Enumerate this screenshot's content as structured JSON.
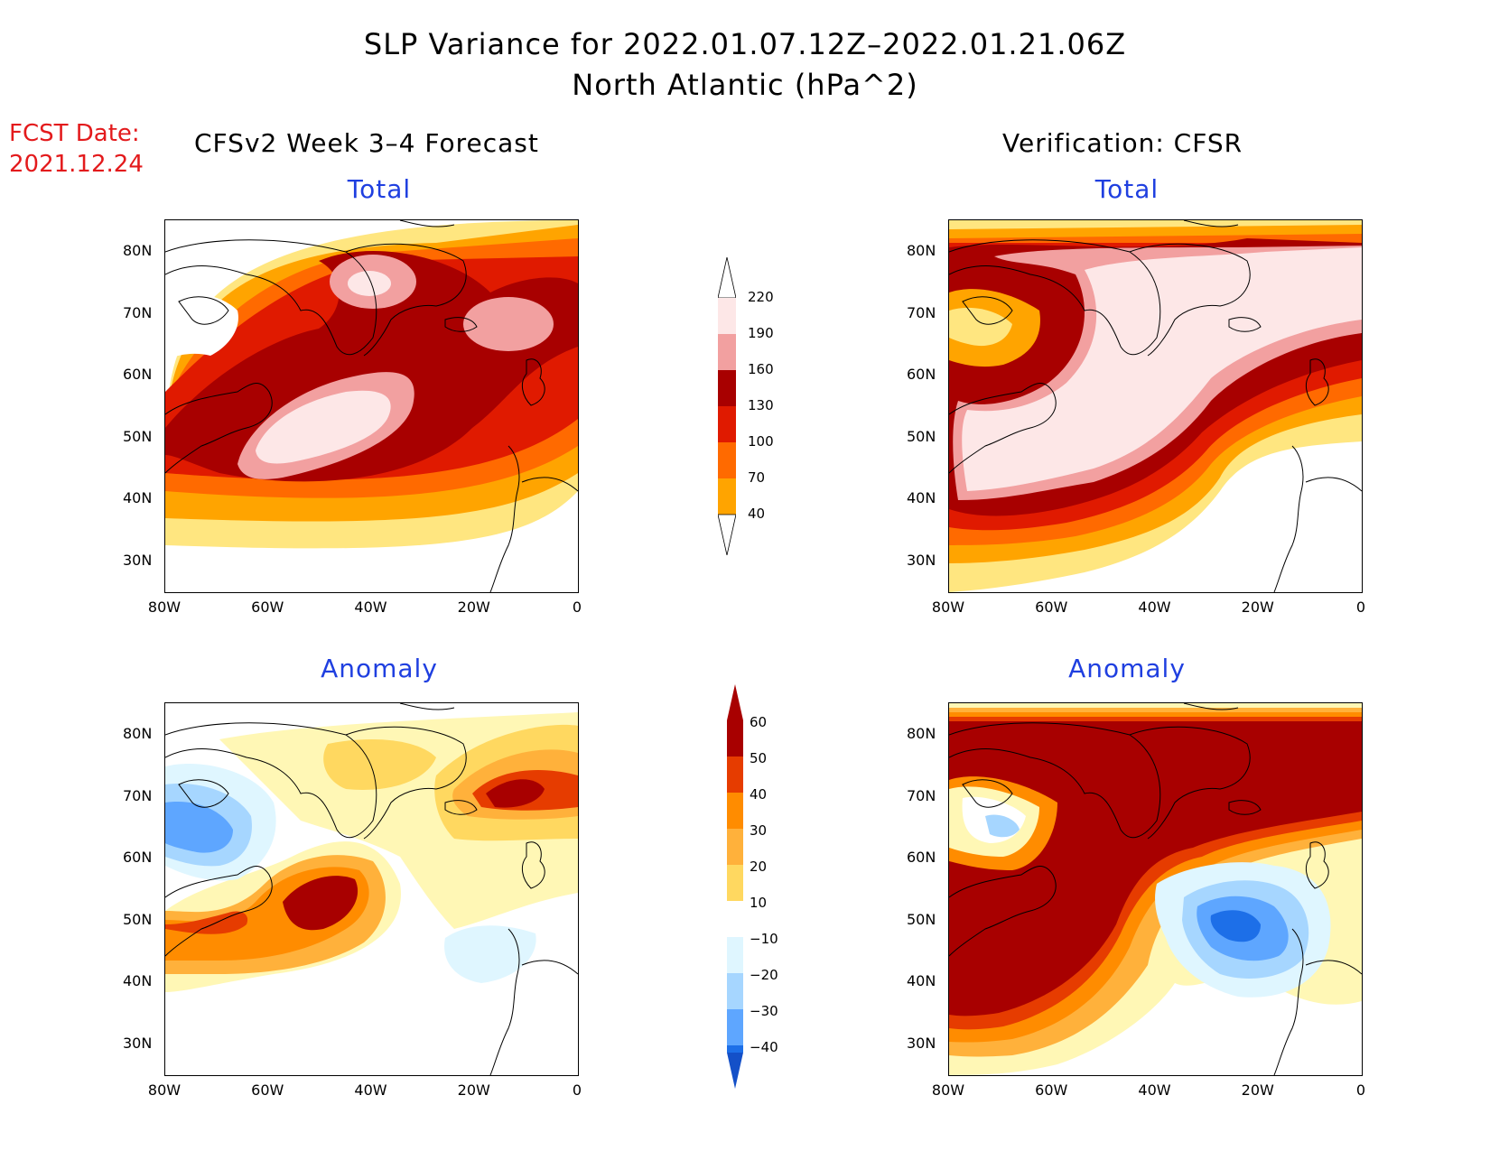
{
  "title": "SLP Variance for 2022.01.07.12Z–2022.01.21.06Z",
  "subtitle": "North Atlantic (hPa^2)",
  "fcst_date_label": "FCST Date:",
  "fcst_date": "2021.12.24",
  "columns": [
    "CFSv2 Week 3–4 Forecast",
    "Verification: CFSR"
  ],
  "panels": [
    {
      "id": "fcst-total",
      "title": "Total"
    },
    {
      "id": "verif-total",
      "title": "Total"
    },
    {
      "id": "fcst-anom",
      "title": "Anomaly"
    },
    {
      "id": "verif-anom",
      "title": "Anomaly"
    }
  ],
  "axes": {
    "lon_ticks": [
      "80W",
      "60W",
      "40W",
      "20W",
      "0"
    ],
    "lat_ticks": [
      "80N",
      "70N",
      "60N",
      "50N",
      "40N",
      "30N"
    ]
  },
  "colorbars": {
    "total": {
      "levels": [
        "220",
        "190",
        "160",
        "130",
        "100",
        "70",
        "40"
      ],
      "colors": [
        "#fde7e7",
        "#f2a0a0",
        "#a80000",
        "#e01a00",
        "#ff6a00",
        "#ffa400",
        "#ffe680"
      ]
    },
    "anomaly": {
      "levels": [
        "60",
        "50",
        "40",
        "30",
        "20",
        "10",
        "−10",
        "−20",
        "−30",
        "−40"
      ],
      "colors": [
        "#a80000",
        "#e63c00",
        "#ff8c00",
        "#ffb13b",
        "#ffd860",
        "#fff7b5",
        "#ffffff",
        "#dff6ff",
        "#a6d6ff",
        "#5ea6ff",
        "#1d6fe8",
        "#1450c8"
      ]
    }
  }
}
